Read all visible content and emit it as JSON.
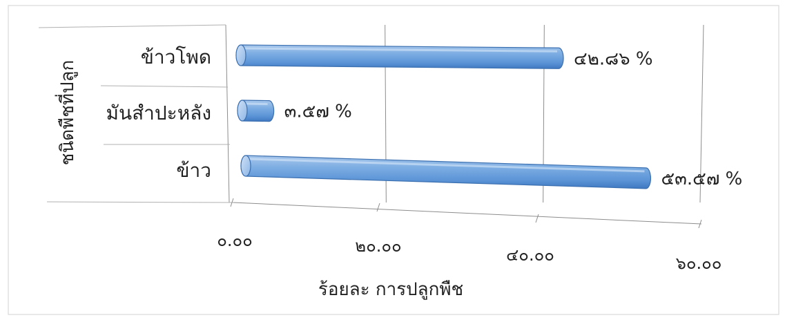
{
  "chart_data": {
    "type": "bar",
    "orientation": "horizontal",
    "style": "3d-cylinder",
    "categories": [
      "ข้าวโพด",
      "มันสำปะหลัง",
      "ข้าว"
    ],
    "values": [
      42.86,
      3.57,
      53.57
    ],
    "data_labels": [
      "๔๒.๘๖ %",
      "๓.๕๗ %",
      "๕๓.๕๗ %"
    ],
    "x_ticks": [
      "๐.๐๐",
      "๒๐.๐๐",
      "๔๐.๐๐",
      "๖๐.๐๐"
    ],
    "xlim": [
      0,
      60
    ],
    "xlabel": "ร้อยละ การปลูกพืช",
    "ylabel": "ชนิดพืชที่ปลูก",
    "grid": true,
    "legend": "none",
    "bar_color": "#5b9bd5"
  }
}
